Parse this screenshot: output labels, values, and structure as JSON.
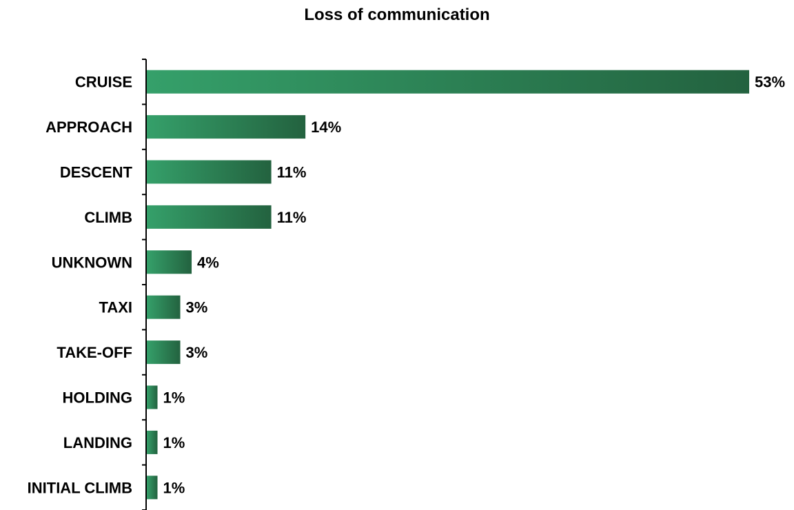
{
  "chart_data": {
    "type": "bar",
    "orientation": "horizontal",
    "title": "Loss of communication",
    "categories": [
      "CRUISE",
      "APPROACH",
      "DESCENT",
      "CLIMB",
      "UNKNOWN",
      "TAXI",
      "TAKE-OFF",
      "HOLDING",
      "LANDING",
      "INITIAL CLIMB"
    ],
    "values": [
      53,
      14,
      11,
      11,
      4,
      3,
      3,
      1,
      1,
      1
    ],
    "value_labels": [
      "53%",
      "14%",
      "11%",
      "11%",
      "4%",
      "3%",
      "3%",
      "1%",
      "1%",
      "1%"
    ],
    "unit": "%",
    "xlim": [
      0,
      53
    ],
    "grid": false,
    "legend": "none",
    "colors": {
      "bar_light": "#35a06a",
      "bar_dark": "#23623f",
      "axis": "#000000"
    }
  }
}
